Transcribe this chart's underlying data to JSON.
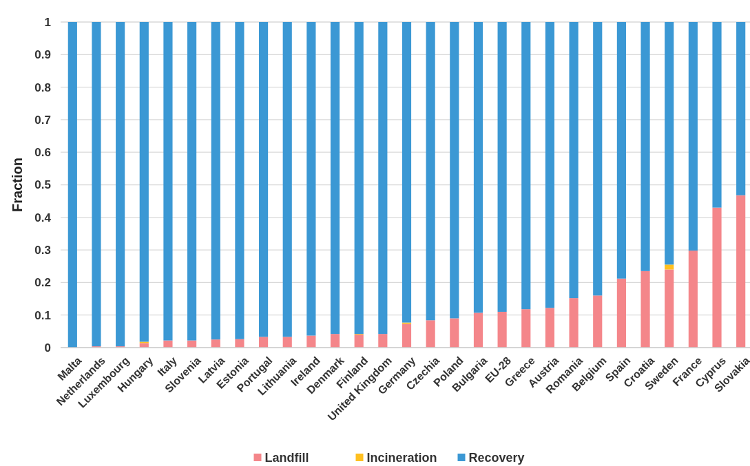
{
  "chart_data": {
    "type": "bar",
    "stacked": true,
    "ylabel": "Fraction",
    "categories": [
      "Malta",
      "Netherlands",
      "Luxembourg",
      "Hungary",
      "Italy",
      "Slovenia",
      "Latvia",
      "Estonia",
      "Portugal",
      "Lithuania",
      "Ireland",
      "Denmark",
      "Finland",
      "United Kingdom",
      "Germany",
      "Czechia",
      "Poland",
      "Bulgaria",
      "EU-28",
      "Greece",
      "Austria",
      "Romania",
      "Belgium",
      "Spain",
      "Croatia",
      "Sweden",
      "France",
      "Cyprus",
      "Slovakia"
    ],
    "series": [
      {
        "name": "Landfill",
        "color": "#f4868a",
        "values": [
          0,
          0.004,
          0.004,
          0.014,
          0.022,
          0.022,
          0.025,
          0.026,
          0.033,
          0.033,
          0.037,
          0.042,
          0.04,
          0.042,
          0.073,
          0.084,
          0.09,
          0.107,
          0.11,
          0.118,
          0.122,
          0.152,
          0.16,
          0.212,
          0.235,
          0.24,
          0.298,
          0.43,
          0.468
        ]
      },
      {
        "name": "Incineration",
        "color": "#ffc020",
        "values": [
          0,
          0,
          0,
          0.004,
          0,
          0,
          0,
          0,
          0,
          0,
          0,
          0,
          0.002,
          0,
          0.004,
          0,
          0,
          0,
          0,
          0,
          0,
          0,
          0,
          0,
          0,
          0.015,
          0,
          0,
          0
        ]
      },
      {
        "name": "Recovery",
        "color": "#3b98d4",
        "values": [
          1,
          0.996,
          0.996,
          0.982,
          0.978,
          0.978,
          0.975,
          0.974,
          0.967,
          0.967,
          0.963,
          0.958,
          0.958,
          0.958,
          0.923,
          0.916,
          0.91,
          0.893,
          0.89,
          0.882,
          0.878,
          0.848,
          0.84,
          0.788,
          0.765,
          0.745,
          0.702,
          0.57,
          0.532
        ]
      }
    ],
    "ylim": [
      0,
      1
    ],
    "yticks": [
      0,
      0.1,
      0.2,
      0.3,
      0.4,
      0.5,
      0.6,
      0.7,
      0.8,
      0.9,
      1
    ],
    "grid": "y",
    "legend": "bottom"
  }
}
